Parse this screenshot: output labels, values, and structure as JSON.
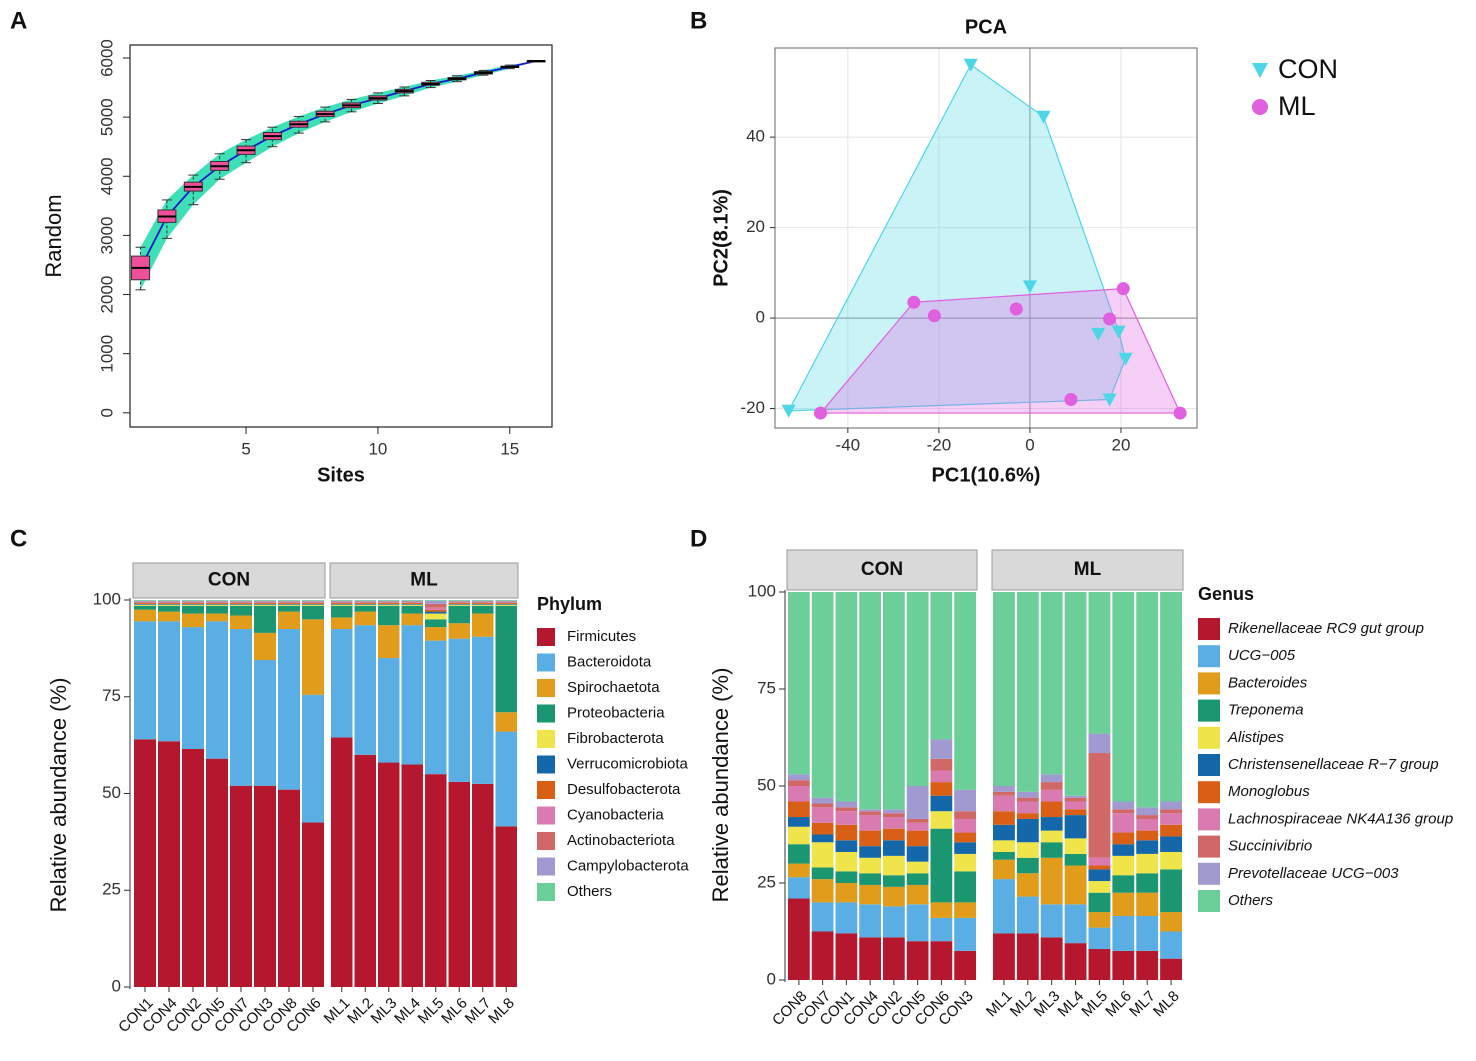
{
  "chart_data": [
    {
      "type": "box",
      "label": "A",
      "xlabel": "Sites",
      "ylabel": "Random",
      "x": [
        1,
        2,
        3,
        4,
        5,
        6,
        7,
        8,
        9,
        10,
        11,
        12,
        13,
        14,
        15,
        16
      ],
      "median": [
        2450,
        3320,
        3820,
        4170,
        4440,
        4680,
        4880,
        5050,
        5200,
        5320,
        5440,
        5560,
        5650,
        5750,
        5850,
        5950
      ],
      "q1": [
        2250,
        3220,
        3750,
        4100,
        4370,
        4620,
        4830,
        5010,
        5160,
        5290,
        5410,
        5540,
        5630,
        5730,
        5840,
        5950
      ],
      "q3": [
        2650,
        3430,
        3900,
        4250,
        4510,
        4740,
        4930,
        5100,
        5240,
        5360,
        5470,
        5590,
        5670,
        5770,
        5860,
        5950
      ],
      "whisker_low": [
        2080,
        2950,
        3520,
        3950,
        4230,
        4500,
        4730,
        4920,
        5090,
        5230,
        5360,
        5500,
        5600,
        5710,
        5820,
        5950
      ],
      "whisker_high": [
        2800,
        3600,
        4020,
        4380,
        4620,
        4830,
        5010,
        5170,
        5300,
        5410,
        5510,
        5620,
        5700,
        5790,
        5880,
        5950
      ],
      "box_color": "#f0509a",
      "band_color": "#3ee0b8",
      "line_color": "#1a1ac8",
      "xlim": [
        0.6,
        16.6
      ],
      "ylim": [
        -240,
        6220
      ],
      "xticks": [
        5,
        10,
        15
      ],
      "yticks": [
        0,
        1000,
        2000,
        3000,
        4000,
        5000,
        6000
      ]
    },
    {
      "type": "scatter",
      "label": "B",
      "title": "PCA",
      "xlabel": "PC1(10.6%)",
      "ylabel": "PC2(8.1%)",
      "series": [
        {
          "name": "CON",
          "color": "#4dd6e6",
          "marker": "triangle-down",
          "x": [
            -13,
            3,
            0,
            15,
            19.5,
            21,
            17.5,
            -53
          ],
          "values": [
            56,
            44.5,
            7,
            -3.5,
            -3,
            -9,
            -18,
            -20.5
          ]
        },
        {
          "name": "ML",
          "color": "#e060e0",
          "marker": "circle",
          "x": [
            -25.5,
            -21,
            -3,
            20.5,
            17.5,
            9,
            -46,
            33
          ],
          "values": [
            3.5,
            0.5,
            2,
            6.5,
            -0.2,
            -18,
            -21,
            -21
          ]
        }
      ],
      "xlim": [
        -56,
        36.7
      ],
      "ylim": [
        -24.3,
        59.7
      ],
      "xticks": [
        -40,
        -20,
        0,
        20
      ],
      "yticks": [
        -20,
        0,
        20,
        40
      ],
      "grid": true
    },
    {
      "type": "stacked_bar",
      "label": "C",
      "ylabel": "Relative abundance (%)",
      "legend_title": "Phylum",
      "facets": [
        {
          "name": "CON",
          "categories": [
            "CON1",
            "CON4",
            "CON2",
            "CON5",
            "CON7",
            "CON3",
            "CON8",
            "CON6"
          ]
        },
        {
          "name": "ML",
          "categories": [
            "ML1",
            "ML2",
            "ML3",
            "ML4",
            "ML5",
            "ML6",
            "ML7",
            "ML8"
          ]
        }
      ],
      "series": [
        {
          "name": "Firmicutes",
          "color": "#b5172e",
          "values": [
            64,
            63.5,
            61.5,
            59,
            52,
            52,
            51,
            42.5,
            64.5,
            60,
            58,
            57.5,
            55,
            53,
            52.5,
            41.5
          ]
        },
        {
          "name": "Bacteroidota",
          "color": "#5aaee3",
          "values": [
            30.5,
            31,
            31.5,
            35.5,
            40.5,
            32.5,
            41.5,
            33,
            28,
            33.5,
            27,
            36,
            34.5,
            37,
            38,
            24.5
          ]
        },
        {
          "name": "Spirochaetota",
          "color": "#e09c1a",
          "values": [
            3,
            2.5,
            3.5,
            2,
            3.5,
            7,
            4.5,
            19.5,
            3,
            3.5,
            8.5,
            3,
            3.5,
            4,
            6,
            5
          ]
        },
        {
          "name": "Proteobacteria",
          "color": "#1a9670",
          "values": [
            1,
            1.5,
            2,
            2,
            2.5,
            7,
            1.5,
            3.5,
            3,
            1.5,
            5,
            2,
            2,
            4.5,
            2,
            27.5
          ]
        },
        {
          "name": "Fibrobacterota",
          "color": "#efe44a",
          "values": [
            0.3,
            0.3,
            0.3,
            0.3,
            0.3,
            0.3,
            0.3,
            0.3,
            0.3,
            0.3,
            0.3,
            0.3,
            1.5,
            0.3,
            0.3,
            0.3
          ]
        },
        {
          "name": "Verrucomicrobiota",
          "color": "#1467a8",
          "values": [
            0.2,
            0.2,
            0.2,
            0.2,
            0.2,
            0.2,
            0.2,
            0.2,
            0.2,
            0.2,
            0.2,
            0.2,
            0.5,
            0.2,
            0.2,
            0.2
          ]
        },
        {
          "name": "Desulfobacterota",
          "color": "#d95f16",
          "values": [
            0.3,
            0.3,
            0.3,
            0.3,
            0.3,
            0.3,
            0.3,
            0.3,
            0.3,
            0.3,
            0.3,
            0.3,
            0.5,
            0.3,
            0.3,
            0.3
          ]
        },
        {
          "name": "Cyanobacteria",
          "color": "#d97ab0",
          "values": [
            0.2,
            0.2,
            0.2,
            0.2,
            0.2,
            0.2,
            0.2,
            0.2,
            0.2,
            0.2,
            0.2,
            0.2,
            0.5,
            0.2,
            0.2,
            0.2
          ]
        },
        {
          "name": "Actinobacteriota",
          "color": "#d06868",
          "values": [
            0.1,
            0.1,
            0.1,
            0.1,
            0.1,
            0.1,
            0.1,
            0.1,
            0.1,
            0.1,
            0.1,
            0.1,
            1,
            0.1,
            0.1,
            0.1
          ]
        },
        {
          "name": "Campylobacterota",
          "color": "#a09ad0",
          "values": [
            0.2,
            0.2,
            0.2,
            0.2,
            0.2,
            0.2,
            0.2,
            0.2,
            0.2,
            0.2,
            0.2,
            0.2,
            0.8,
            0.2,
            0.2,
            0.2
          ]
        },
        {
          "name": "Others",
          "color": "#6ccf9a",
          "values": [
            0.2,
            0.2,
            0.2,
            0.2,
            0.2,
            0.2,
            0.2,
            0.2,
            0.2,
            0.2,
            0.2,
            0.2,
            0.2,
            0.2,
            0.2,
            0.2
          ]
        }
      ],
      "ylim": [
        0,
        100
      ],
      "yticks": [
        0,
        25,
        50,
        75,
        100
      ]
    },
    {
      "type": "stacked_bar",
      "label": "D",
      "ylabel": "Relative abundance (%)",
      "legend_title": "Genus",
      "italic_legend": true,
      "facets": [
        {
          "name": "CON",
          "categories": [
            "CON8",
            "CON7",
            "CON1",
            "CON4",
            "CON2",
            "CON5",
            "CON6",
            "CON3"
          ]
        },
        {
          "name": "ML",
          "categories": [
            "ML1",
            "ML2",
            "ML3",
            "ML4",
            "ML5",
            "ML6",
            "ML7",
            "ML8"
          ]
        }
      ],
      "series": [
        {
          "name": "Rikenellaceae RC9 gut group",
          "color": "#b5172e",
          "values": [
            21,
            12.5,
            12,
            11,
            11,
            10,
            10,
            7.5,
            12,
            12,
            11,
            9.5,
            8,
            7.5,
            7.5,
            5.5
          ]
        },
        {
          "name": "UCG−005",
          "color": "#5aaee3",
          "values": [
            5.5,
            7.5,
            8,
            8.5,
            8,
            9.5,
            6,
            8.5,
            14,
            9.5,
            8.5,
            10,
            5.5,
            9,
            9,
            7
          ]
        },
        {
          "name": "Bacteroides",
          "color": "#e09c1a",
          "values": [
            3.5,
            6,
            5,
            5,
            5,
            5,
            4,
            4,
            5,
            6,
            12,
            10,
            4,
            6,
            6,
            5
          ]
        },
        {
          "name": "Treponema",
          "color": "#1a9670",
          "values": [
            5,
            3,
            3,
            3,
            3,
            3,
            19,
            8,
            2,
            4,
            4,
            3,
            5,
            4.5,
            5,
            11
          ]
        },
        {
          "name": "Alistipes",
          "color": "#efe44a",
          "values": [
            4.5,
            6.5,
            5,
            4,
            5,
            3,
            4.5,
            4.5,
            3,
            4,
            3,
            4,
            3,
            5,
            5,
            4.5
          ]
        },
        {
          "name": "Christensenellaceae R−7 group",
          "color": "#1467a8",
          "values": [
            2.5,
            2,
            3,
            3,
            4,
            4,
            4,
            3,
            4,
            6,
            3.5,
            6,
            3,
            3,
            3.5,
            4
          ]
        },
        {
          "name": "Monoglobus",
          "color": "#d95f16",
          "values": [
            4,
            3,
            4,
            4,
            3,
            4,
            3.5,
            2.5,
            3.5,
            1.5,
            4,
            1.5,
            1,
            3,
            2.5,
            3
          ]
        },
        {
          "name": "Lachnospiraceae NK4A136 group",
          "color": "#d97ab0",
          "values": [
            4,
            4,
            3.5,
            4,
            3,
            2,
            3,
            3.5,
            4,
            3,
            3,
            2,
            2,
            5,
            3,
            3
          ]
        },
        {
          "name": "Succinivibrio",
          "color": "#d06868",
          "values": [
            1.5,
            1,
            1,
            1,
            1,
            1,
            3,
            2,
            1,
            1,
            2,
            1,
            27,
            1,
            1,
            1
          ]
        },
        {
          "name": "Prevotellaceae UCG−003",
          "color": "#a09ad0",
          "values": [
            1.5,
            1.5,
            1.5,
            0.5,
            1,
            8.5,
            5,
            5.5,
            1.5,
            1.5,
            2,
            0.5,
            5,
            2,
            2,
            2
          ]
        },
        {
          "name": "Others",
          "color": "#6ccf9a",
          "values": [
            47,
            53,
            54,
            56,
            56,
            50,
            38,
            51,
            50,
            51.5,
            47,
            52.5,
            36.5,
            54,
            55.5,
            54
          ]
        }
      ],
      "ylim": [
        0,
        100
      ],
      "yticks": [
        0,
        25,
        50,
        75,
        100
      ]
    }
  ]
}
